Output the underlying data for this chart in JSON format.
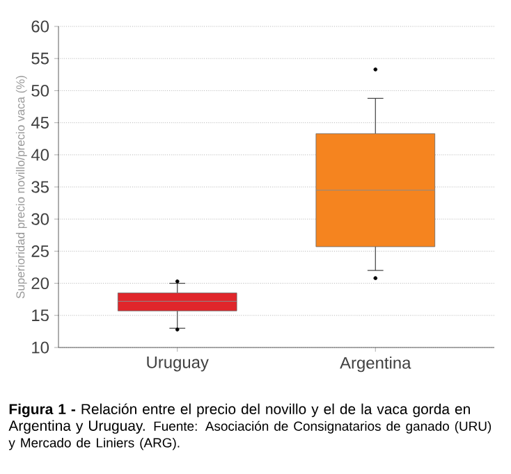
{
  "chart_data": {
    "type": "box",
    "title": "**Figura 1 -** Relación entre el precio del novillo y el de la vaca gorda en Argentina y Uruguay.",
    "annotations": [
      "Fuente: Asociación de Consignatarios de ganado (URU) y Mercado de Liniers (ARG)."
    ],
    "ylabel": "Superioridad precio novillo/precio vaca (%)",
    "categories": [
      "Uruguay",
      "Argentina"
    ],
    "colors": [
      "#e0262b",
      "#f5841f"
    ],
    "boxes": [
      {
        "low": 13,
        "q1": 15.7,
        "median": 17.2,
        "q3": 18.5,
        "high": 20,
        "outliers": [
          20.3,
          12.8
        ]
      },
      {
        "low": 22,
        "q1": 25.7,
        "median": 34.5,
        "q3": 43.3,
        "high": 48.8,
        "outliers": [
          53.3,
          20.8
        ]
      }
    ],
    "ylim": [
      10,
      60
    ],
    "yticks": [
      10,
      15,
      20,
      25,
      30,
      35,
      40,
      45,
      50,
      55,
      60
    ],
    "grid": "y"
  }
}
